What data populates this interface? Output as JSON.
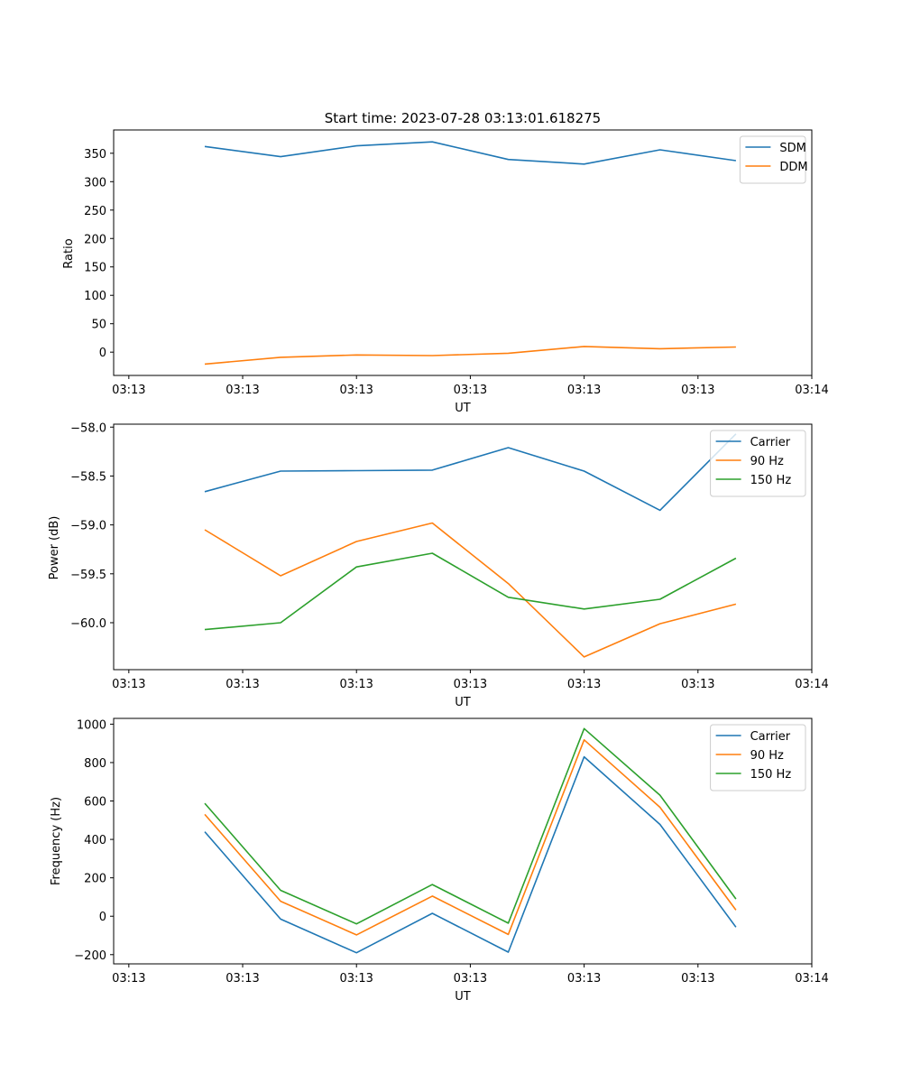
{
  "chart_data": [
    {
      "type": "line",
      "title": "Start time: 2023-07-28 03:13:01.618275",
      "xlabel": "UT",
      "ylabel": "Ratio",
      "xticks": [
        "03:13",
        "03:13",
        "03:13",
        "03:13",
        "03:13",
        "03:13",
        "03:14"
      ],
      "xlim": [
        -0.2,
        9.0
      ],
      "x": [
        1,
        2,
        3,
        4,
        5,
        6,
        7,
        8
      ],
      "ylim": [
        -41,
        391
      ],
      "yticks": [
        0,
        50,
        100,
        150,
        200,
        250,
        300,
        350
      ],
      "legend_position": "top-right",
      "series": [
        {
          "name": "SDM",
          "color": "#1f77b4",
          "values": [
            362,
            344,
            363,
            370,
            339,
            331,
            356,
            337
          ]
        },
        {
          "name": "DDM",
          "color": "#ff7f0e",
          "values": [
            -21,
            -9,
            -5,
            -6,
            -2,
            10,
            6,
            9
          ]
        }
      ]
    },
    {
      "type": "line",
      "title": "",
      "xlabel": "UT",
      "ylabel": "Power (dB)",
      "xticks": [
        "03:13",
        "03:13",
        "03:13",
        "03:13",
        "03:13",
        "03:13",
        "03:14"
      ],
      "xlim": [
        -0.2,
        9.0
      ],
      "x": [
        1,
        2,
        3,
        4,
        5,
        6,
        7,
        8
      ],
      "ylim": [
        -60.48,
        -57.97
      ],
      "yticks": [
        -58.0,
        -58.5,
        -59.0,
        -59.5,
        -60.0
      ],
      "ytick_labels": [
        "−58.0",
        "−58.5",
        "−59.0",
        "−59.5",
        "−60.0"
      ],
      "legend_position": "top-right",
      "series": [
        {
          "name": "Carrier",
          "color": "#1f77b4",
          "values": [
            -58.66,
            -58.45,
            -58.445,
            -58.44,
            -58.21,
            -58.45,
            -58.85,
            -58.07
          ]
        },
        {
          "name": "90 Hz",
          "color": "#ff7f0e",
          "values": [
            -59.05,
            -59.52,
            -59.17,
            -58.98,
            -59.6,
            -60.35,
            -60.01,
            -59.81
          ]
        },
        {
          "name": "150 Hz",
          "color": "#2ca02c",
          "values": [
            -60.07,
            -60.0,
            -59.43,
            -59.29,
            -59.74,
            -59.86,
            -59.76,
            -59.34
          ]
        }
      ]
    },
    {
      "type": "line",
      "title": "",
      "xlabel": "UT",
      "ylabel": "Frequency (Hz)",
      "xticks": [
        "03:13",
        "03:13",
        "03:13",
        "03:13",
        "03:13",
        "03:13",
        "03:14"
      ],
      "xlim": [
        -0.2,
        9.0
      ],
      "x": [
        1,
        2,
        3,
        4,
        5,
        6,
        7,
        8
      ],
      "ylim": [
        -248,
        1030
      ],
      "yticks": [
        -200,
        0,
        200,
        400,
        600,
        800,
        1000
      ],
      "ytick_labels": [
        "−200",
        "0",
        "200",
        "400",
        "600",
        "800",
        "1000"
      ],
      "legend_position": "top-right",
      "series": [
        {
          "name": "Carrier",
          "color": "#1f77b4",
          "values": [
            440,
            -15,
            -190,
            15,
            -187,
            830,
            478,
            -57
          ]
        },
        {
          "name": "90 Hz",
          "color": "#ff7f0e",
          "values": [
            530,
            78,
            -97,
            105,
            -95,
            918,
            567,
            32
          ]
        },
        {
          "name": "150 Hz",
          "color": "#2ca02c",
          "values": [
            588,
            135,
            -40,
            165,
            -36,
            977,
            630,
            90
          ]
        }
      ]
    }
  ]
}
